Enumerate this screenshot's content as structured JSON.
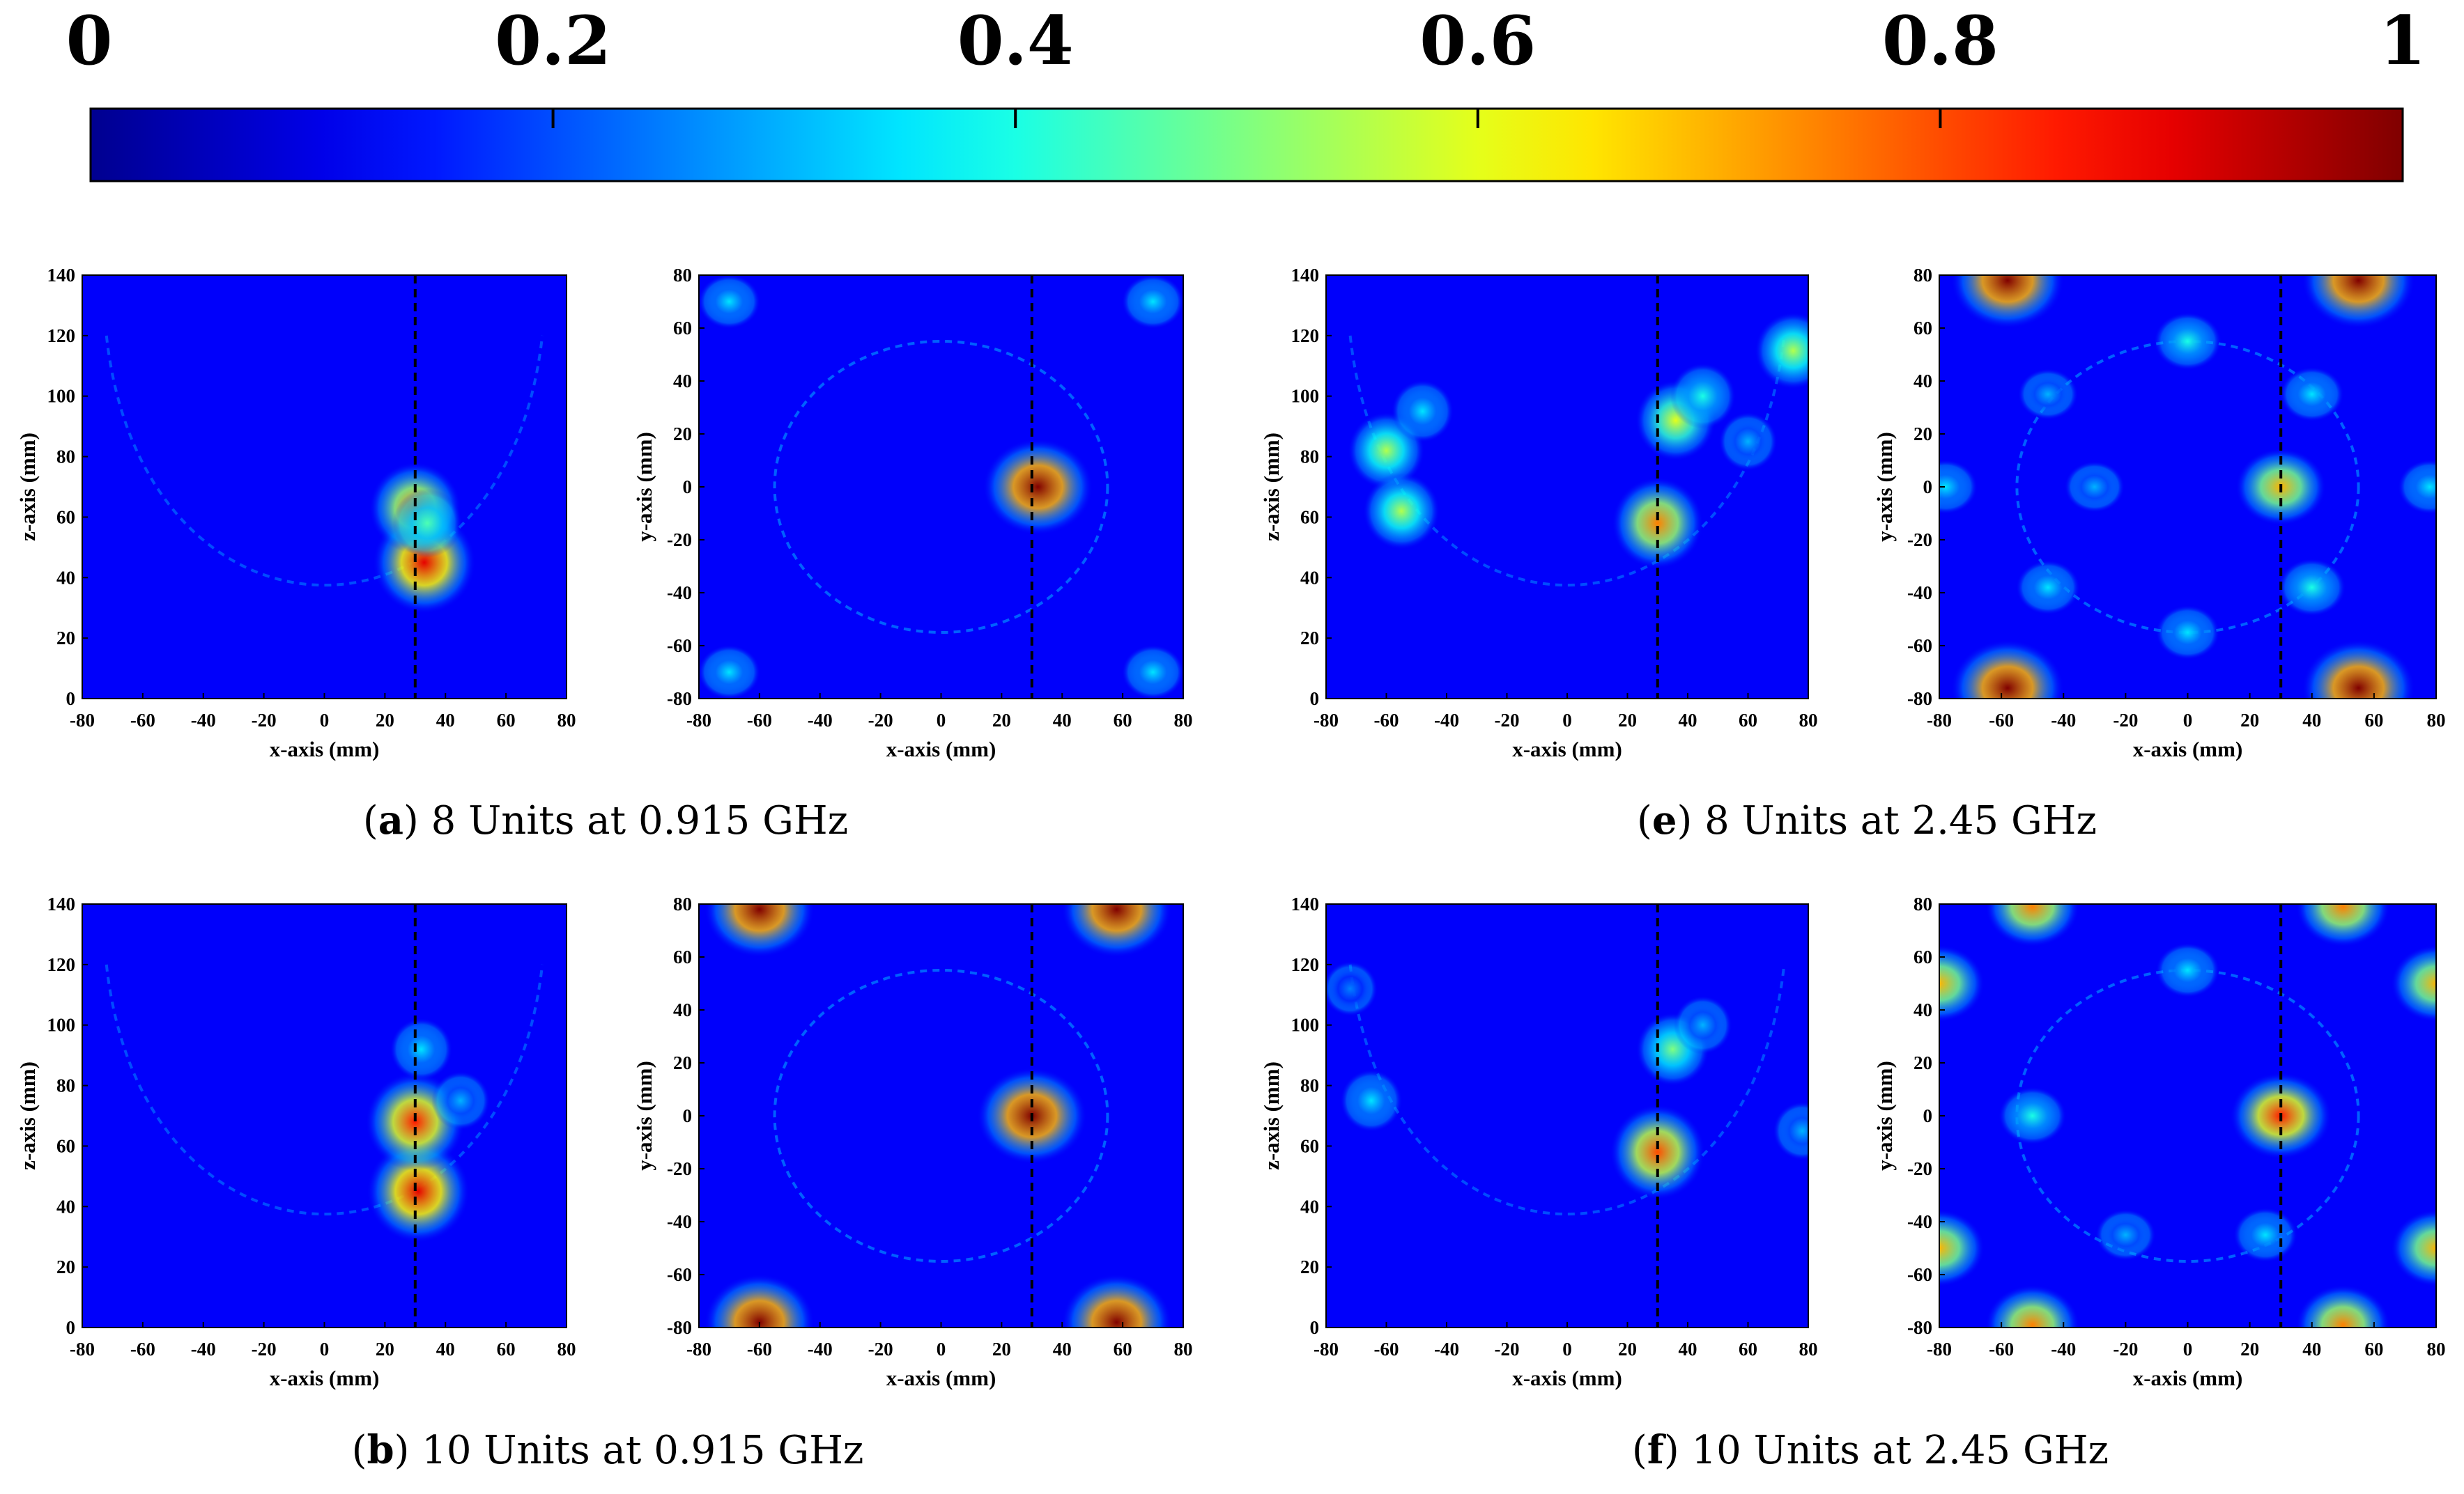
{
  "colorbar": {
    "ticks": [
      "0",
      "0.2",
      "0.4",
      "0.6",
      "0.8",
      "1"
    ],
    "range": [
      0,
      1
    ],
    "colormap": "jet",
    "colors": [
      "#00008f",
      "#0000ff",
      "#00ffff",
      "#ffff00",
      "#ff0000",
      "#800000"
    ]
  },
  "chart_data": [
    {
      "type": "heatmap",
      "panel": "a",
      "view": "xz",
      "xlabel": "x-axis (mm)",
      "ylabel": "z-axis (mm)",
      "xlim": [
        -80,
        80
      ],
      "ylim": [
        0,
        140
      ],
      "xticks": [
        "-80",
        "-60",
        "-40",
        "-20",
        "0",
        "20",
        "40",
        "60",
        "80"
      ],
      "yticks": [
        "0",
        "20",
        "40",
        "60",
        "80",
        "100",
        "120",
        "140"
      ],
      "marker_line_x": 30,
      "hotspots": [
        {
          "x": 33,
          "y": 45,
          "value": 0.9
        },
        {
          "x": 30,
          "y": 63,
          "value": 0.75
        },
        {
          "x": 34,
          "y": 58,
          "value": 0.45
        }
      ]
    },
    {
      "type": "heatmap",
      "panel": "a",
      "view": "xy",
      "xlabel": "x-axis (mm)",
      "ylabel": "y-axis (mm)",
      "xlim": [
        -80,
        80
      ],
      "ylim": [
        -80,
        80
      ],
      "xticks": [
        "-80",
        "-60",
        "-40",
        "-20",
        "0",
        "20",
        "40",
        "60",
        "80"
      ],
      "yticks": [
        "-80",
        "-60",
        "-40",
        "-20",
        "0",
        "20",
        "40",
        "60",
        "80"
      ],
      "marker_line_x": 30,
      "hotspots": [
        {
          "x": 32,
          "y": 0,
          "value": 1.0
        },
        {
          "x": -70,
          "y": 70,
          "value": 0.35
        },
        {
          "x": 70,
          "y": 70,
          "value": 0.35
        },
        {
          "x": -70,
          "y": -70,
          "value": 0.35
        },
        {
          "x": 70,
          "y": -70,
          "value": 0.35
        }
      ]
    },
    {
      "type": "heatmap",
      "panel": "e",
      "view": "xz",
      "xlabel": "x-axis (mm)",
      "ylabel": "z-axis (mm)",
      "xlim": [
        -80,
        80
      ],
      "ylim": [
        0,
        140
      ],
      "xticks": [
        "-80",
        "-60",
        "-40",
        "-20",
        "0",
        "20",
        "40",
        "60",
        "80"
      ],
      "yticks": [
        "0",
        "20",
        "40",
        "60",
        "80",
        "100",
        "120",
        "140"
      ],
      "marker_line_x": 30,
      "hotspots": [
        {
          "x": -60,
          "y": 82,
          "value": 0.55
        },
        {
          "x": -55,
          "y": 62,
          "value": 0.55
        },
        {
          "x": -48,
          "y": 95,
          "value": 0.35
        },
        {
          "x": 30,
          "y": 58,
          "value": 0.75
        },
        {
          "x": 36,
          "y": 92,
          "value": 0.6
        },
        {
          "x": 45,
          "y": 100,
          "value": 0.4
        },
        {
          "x": 75,
          "y": 115,
          "value": 0.55
        },
        {
          "x": 60,
          "y": 85,
          "value": 0.3
        }
      ]
    },
    {
      "type": "heatmap",
      "panel": "e",
      "view": "xy",
      "xlabel": "x-axis (mm)",
      "ylabel": "y-axis (mm)",
      "xlim": [
        -80,
        80
      ],
      "ylim": [
        -80,
        80
      ],
      "xticks": [
        "-80",
        "-60",
        "-40",
        "-20",
        "0",
        "20",
        "40",
        "60",
        "80"
      ],
      "yticks": [
        "-80",
        "-60",
        "-40",
        "-20",
        "0",
        "20",
        "40",
        "60",
        "80"
      ],
      "marker_line_x": 30,
      "hotspots": [
        {
          "x": -58,
          "y": 78,
          "value": 1.0
        },
        {
          "x": 55,
          "y": 78,
          "value": 1.0
        },
        {
          "x": -58,
          "y": -76,
          "value": 1.0
        },
        {
          "x": 55,
          "y": -76,
          "value": 1.0
        },
        {
          "x": 30,
          "y": 0,
          "value": 0.7
        },
        {
          "x": -30,
          "y": 0,
          "value": 0.3
        },
        {
          "x": 0,
          "y": 55,
          "value": 0.4
        },
        {
          "x": 0,
          "y": -55,
          "value": 0.35
        },
        {
          "x": -45,
          "y": -38,
          "value": 0.35
        },
        {
          "x": 40,
          "y": -38,
          "value": 0.4
        },
        {
          "x": 40,
          "y": 35,
          "value": 0.35
        },
        {
          "x": -45,
          "y": 35,
          "value": 0.3
        },
        {
          "x": -78,
          "y": 0,
          "value": 0.35
        },
        {
          "x": 78,
          "y": 0,
          "value": 0.35
        }
      ]
    },
    {
      "type": "heatmap",
      "panel": "b",
      "view": "xz",
      "xlabel": "x-axis (mm)",
      "ylabel": "z-axis (mm)",
      "xlim": [
        -80,
        80
      ],
      "ylim": [
        0,
        140
      ],
      "xticks": [
        "-80",
        "-60",
        "-40",
        "-20",
        "0",
        "20",
        "40",
        "60",
        "80"
      ],
      "yticks": [
        "0",
        "20",
        "40",
        "60",
        "80",
        "100",
        "120",
        "140"
      ],
      "marker_line_x": 30,
      "hotspots": [
        {
          "x": 31,
          "y": 45,
          "value": 0.9
        },
        {
          "x": 30,
          "y": 68,
          "value": 0.85
        },
        {
          "x": 32,
          "y": 92,
          "value": 0.35
        },
        {
          "x": 45,
          "y": 75,
          "value": 0.3
        }
      ]
    },
    {
      "type": "heatmap",
      "panel": "b",
      "view": "xy",
      "xlabel": "x-axis (mm)",
      "ylabel": "y-axis (mm)",
      "xlim": [
        -80,
        80
      ],
      "ylim": [
        -80,
        80
      ],
      "xticks": [
        "-80",
        "-60",
        "-40",
        "-20",
        "0",
        "20",
        "40",
        "60",
        "80"
      ],
      "yticks": [
        "-80",
        "-60",
        "-40",
        "-20",
        "0",
        "20",
        "40",
        "60",
        "80"
      ],
      "marker_line_x": 30,
      "hotspots": [
        {
          "x": 30,
          "y": 0,
          "value": 1.0
        },
        {
          "x": -60,
          "y": 78,
          "value": 1.0
        },
        {
          "x": 58,
          "y": 78,
          "value": 1.0
        },
        {
          "x": -60,
          "y": -78,
          "value": 1.0
        },
        {
          "x": 58,
          "y": -78,
          "value": 1.0
        }
      ]
    },
    {
      "type": "heatmap",
      "panel": "f",
      "view": "xz",
      "xlabel": "x-axis (mm)",
      "ylabel": "z-axis (mm)",
      "xlim": [
        -80,
        80
      ],
      "ylim": [
        0,
        140
      ],
      "xticks": [
        "-80",
        "-60",
        "-40",
        "-20",
        "0",
        "20",
        "40",
        "60",
        "80"
      ],
      "yticks": [
        "0",
        "20",
        "40",
        "60",
        "80",
        "100",
        "120",
        "140"
      ],
      "marker_line_x": 30,
      "hotspots": [
        {
          "x": 30,
          "y": 58,
          "value": 0.8
        },
        {
          "x": 35,
          "y": 92,
          "value": 0.5
        },
        {
          "x": 45,
          "y": 100,
          "value": 0.3
        },
        {
          "x": -65,
          "y": 75,
          "value": 0.35
        },
        {
          "x": -72,
          "y": 112,
          "value": 0.25
        },
        {
          "x": 78,
          "y": 65,
          "value": 0.3
        }
      ]
    },
    {
      "type": "heatmap",
      "panel": "f",
      "view": "xy",
      "xlabel": "x-axis (mm)",
      "ylabel": "y-axis (mm)",
      "xlim": [
        -80,
        80
      ],
      "ylim": [
        -80,
        80
      ],
      "xticks": [
        "-80",
        "-60",
        "-40",
        "-20",
        "0",
        "20",
        "40",
        "60",
        "80"
      ],
      "yticks": [
        "-80",
        "-60",
        "-40",
        "-20",
        "0",
        "20",
        "40",
        "60",
        "80"
      ],
      "marker_line_x": 30,
      "hotspots": [
        {
          "x": 30,
          "y": 0,
          "value": 0.85
        },
        {
          "x": -50,
          "y": 79,
          "value": 0.75
        },
        {
          "x": 50,
          "y": 79,
          "value": 0.75
        },
        {
          "x": -50,
          "y": -79,
          "value": 0.75
        },
        {
          "x": 50,
          "y": -79,
          "value": 0.75
        },
        {
          "x": -80,
          "y": 50,
          "value": 0.7
        },
        {
          "x": 80,
          "y": 50,
          "value": 0.7
        },
        {
          "x": -80,
          "y": -50,
          "value": 0.7
        },
        {
          "x": 80,
          "y": -50,
          "value": 0.7
        },
        {
          "x": -50,
          "y": 0,
          "value": 0.4
        },
        {
          "x": 0,
          "y": 55,
          "value": 0.35
        },
        {
          "x": -20,
          "y": -45,
          "value": 0.3
        },
        {
          "x": 25,
          "y": -45,
          "value": 0.35
        }
      ]
    }
  ],
  "captions": [
    {
      "letter": "a",
      "text": "8 Units at 0.915 GHz"
    },
    {
      "letter": "e",
      "text": "8 Units at 2.45 GHz"
    },
    {
      "letter": "b",
      "text": "10 Units at 0.915 GHz"
    },
    {
      "letter": "f",
      "text": "10 Units at 2.45 GHz"
    }
  ]
}
